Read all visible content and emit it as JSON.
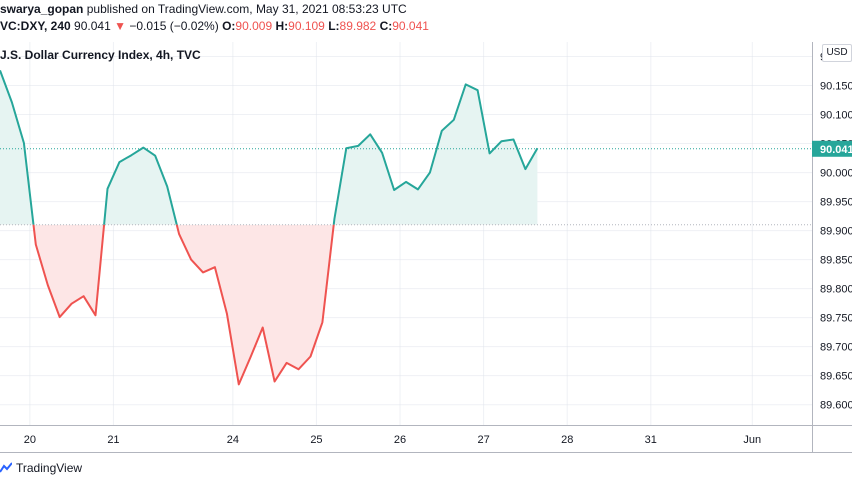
{
  "header": {
    "author": "swarya_gopan",
    "published_text": "published on TradingView.com, May 31, 2021 08:53:23 UTC",
    "symbol": "VC:DXY, 240",
    "last": "90.041",
    "change": "−0.015 (−0.02%)",
    "open_label": "O:",
    "open": "90.009",
    "high_label": "H:",
    "high": "90.109",
    "low_label": "L:",
    "low": "89.982",
    "close_label": "C:",
    "close": "90.041"
  },
  "chart_title": "J.S. Dollar Currency Index, 4h, TVC",
  "currency": "USD",
  "branding": "TradingView",
  "colors": {
    "up": "#26a69a",
    "down": "#ef5350",
    "up_fill": "#e6f4f2",
    "down_fill": "#fde6e6",
    "price_tag": "#26a69a",
    "grid": "#e0e3eb",
    "axis_border": "#b2b5be",
    "baseline": "#b2b5be"
  },
  "price_tag": "90.041",
  "chart_data": {
    "type": "line",
    "title": "J.S. Dollar Currency Index, 4h, TVC",
    "baseline": 89.91,
    "last_value": 90.041,
    "ylim": [
      89.565,
      90.225
    ],
    "y_ticks": [
      "90.200",
      "90.150",
      "90.100",
      "90.050",
      "90.000",
      "89.950",
      "89.900",
      "89.850",
      "89.800",
      "89.750",
      "89.700",
      "89.650",
      "89.600"
    ],
    "y_tick_values": [
      90.2,
      90.15,
      90.1,
      90.05,
      90.0,
      89.95,
      89.9,
      89.85,
      89.8,
      89.75,
      89.7,
      89.65,
      89.6
    ],
    "x_ticks": [
      "20",
      "21",
      "24",
      "25",
      "26",
      "27",
      "28",
      "31",
      "Jun"
    ],
    "x_tick_index": [
      2.5,
      9.5,
      19.5,
      26.5,
      33.5,
      40.5,
      47.5,
      54.5,
      63
    ],
    "xlim": [
      0,
      68
    ],
    "series": [
      {
        "values": [
          90.176,
          90.121,
          90.051,
          89.876,
          89.806,
          89.751,
          89.774,
          89.787,
          89.754,
          89.972,
          90.018,
          90.03,
          90.043,
          90.029,
          89.976,
          89.894,
          89.85,
          89.828,
          89.837,
          89.757,
          89.635,
          89.683,
          89.733,
          89.64,
          89.672,
          89.661,
          89.683,
          89.742,
          89.92,
          90.042,
          90.046,
          90.066,
          90.034,
          89.97,
          89.984,
          89.971,
          90.0,
          90.072,
          90.091,
          90.152,
          90.142,
          90.033,
          90.054,
          90.057,
          90.006,
          90.042
        ]
      }
    ],
    "grid": true,
    "legend": "none"
  }
}
